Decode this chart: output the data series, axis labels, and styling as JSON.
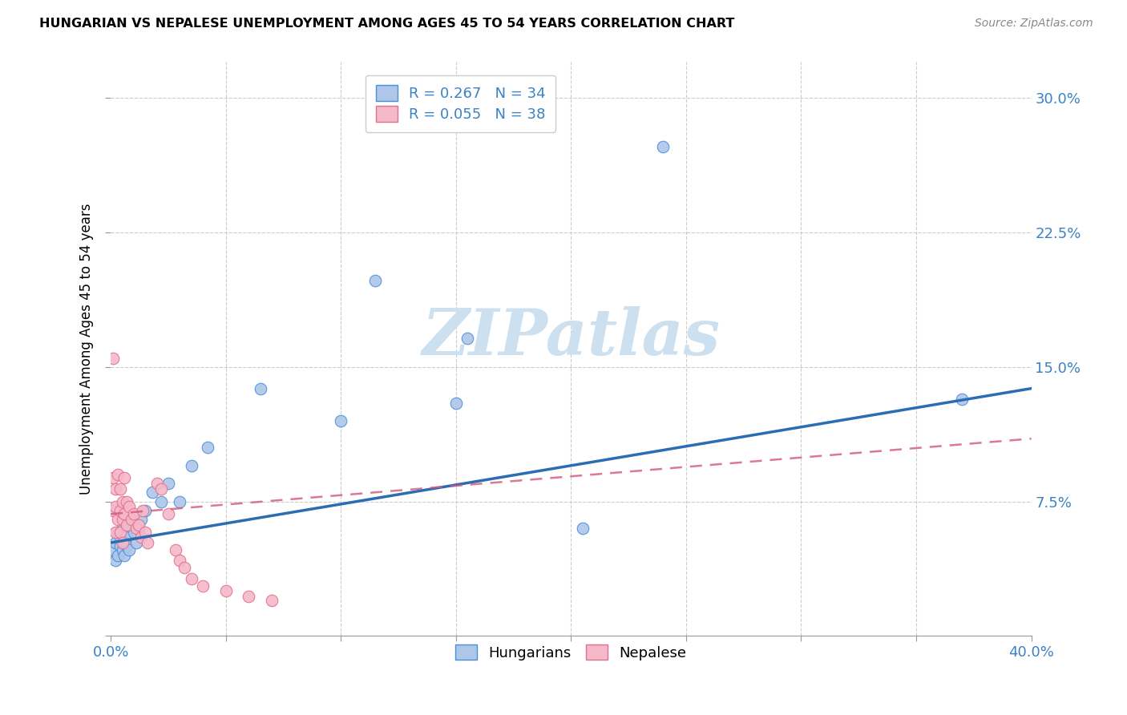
{
  "title": "HUNGARIAN VS NEPALESE UNEMPLOYMENT AMONG AGES 45 TO 54 YEARS CORRELATION CHART",
  "source": "Source: ZipAtlas.com",
  "ylabel": "Unemployment Among Ages 45 to 54 years",
  "xlim": [
    0.0,
    0.4
  ],
  "ylim": [
    0.0,
    0.32
  ],
  "xtick_positions": [
    0.0,
    0.05,
    0.1,
    0.15,
    0.2,
    0.25,
    0.3,
    0.35,
    0.4
  ],
  "ytick_positions": [
    0.0,
    0.075,
    0.15,
    0.225,
    0.3
  ],
  "ytick_labels": [
    "",
    "7.5%",
    "15.0%",
    "22.5%",
    "30.0%"
  ],
  "xtick_labels": [
    "0.0%",
    "",
    "",
    "",
    "",
    "",
    "",
    "",
    "40.0%"
  ],
  "hungarian_R": 0.267,
  "hungarian_N": 34,
  "nepalese_R": 0.055,
  "nepalese_N": 38,
  "hungarian_color": "#aec6e8",
  "hungarian_edge_color": "#4a90d9",
  "hungarian_line_color": "#2b6db5",
  "nepalese_color": "#f5b8c8",
  "nepalese_edge_color": "#e07090",
  "nepalese_line_color": "#d05878",
  "watermark_color": "#cce0f0",
  "hun_line_x0": 0.0,
  "hun_line_y0": 0.052,
  "hun_line_x1": 0.4,
  "hun_line_y1": 0.138,
  "nep_line_x0": 0.0,
  "nep_line_y0": 0.068,
  "nep_line_x1": 0.4,
  "nep_line_y1": 0.11,
  "hungarian_x": [
    0.001,
    0.002,
    0.002,
    0.003,
    0.003,
    0.004,
    0.004,
    0.005,
    0.005,
    0.006,
    0.006,
    0.007,
    0.007,
    0.008,
    0.008,
    0.01,
    0.011,
    0.012,
    0.013,
    0.015,
    0.018,
    0.022,
    0.025,
    0.03,
    0.035,
    0.042,
    0.065,
    0.1,
    0.115,
    0.15,
    0.155,
    0.205,
    0.24,
    0.37
  ],
  "hungarian_y": [
    0.048,
    0.052,
    0.042,
    0.058,
    0.045,
    0.05,
    0.055,
    0.048,
    0.06,
    0.052,
    0.045,
    0.055,
    0.05,
    0.062,
    0.048,
    0.058,
    0.052,
    0.06,
    0.065,
    0.07,
    0.08,
    0.075,
    0.085,
    0.075,
    0.095,
    0.105,
    0.138,
    0.12,
    0.198,
    0.13,
    0.166,
    0.06,
    0.273,
    0.132
  ],
  "nepalese_x": [
    0.001,
    0.001,
    0.001,
    0.002,
    0.002,
    0.002,
    0.003,
    0.003,
    0.004,
    0.004,
    0.004,
    0.005,
    0.005,
    0.005,
    0.006,
    0.006,
    0.007,
    0.007,
    0.008,
    0.009,
    0.01,
    0.011,
    0.012,
    0.013,
    0.014,
    0.015,
    0.016,
    0.02,
    0.022,
    0.025,
    0.028,
    0.03,
    0.032,
    0.035,
    0.04,
    0.05,
    0.06,
    0.07
  ],
  "nepalese_y": [
    0.155,
    0.088,
    0.07,
    0.082,
    0.072,
    0.058,
    0.09,
    0.065,
    0.082,
    0.07,
    0.058,
    0.075,
    0.065,
    0.052,
    0.088,
    0.068,
    0.075,
    0.062,
    0.072,
    0.065,
    0.068,
    0.06,
    0.062,
    0.055,
    0.07,
    0.058,
    0.052,
    0.085,
    0.082,
    0.068,
    0.048,
    0.042,
    0.038,
    0.032,
    0.028,
    0.025,
    0.022,
    0.02
  ]
}
